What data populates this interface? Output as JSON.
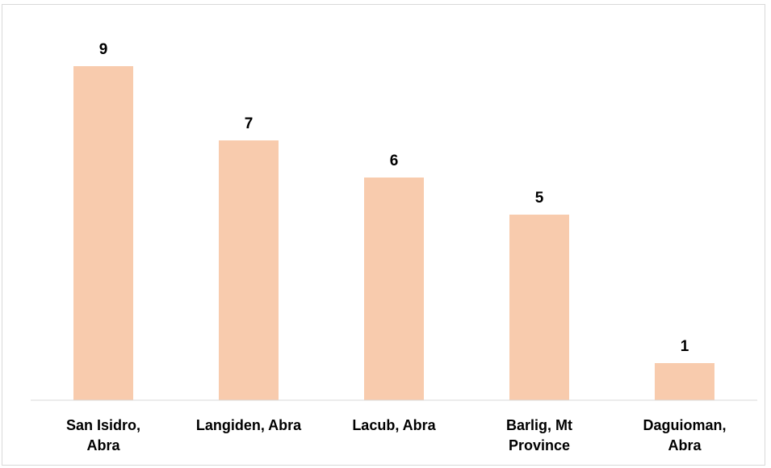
{
  "chart_data": {
    "type": "bar",
    "title": "",
    "xlabel": "",
    "ylabel": "",
    "categories": [
      [
        "San Isidro,",
        "Abra"
      ],
      [
        "Langiden, Abra"
      ],
      [
        "Lacub, Abra"
      ],
      [
        "Barlig, Mt",
        "Province"
      ],
      [
        "Daguioman,",
        "Abra"
      ]
    ],
    "values": [
      9,
      7,
      6,
      5,
      1
    ],
    "ylim": [
      0,
      10
    ],
    "grid": false,
    "legend": "none",
    "data_labels": true,
    "colors": {
      "bar": "#f8cbad",
      "axis": "#d9d9d9",
      "text": "#000000"
    }
  }
}
